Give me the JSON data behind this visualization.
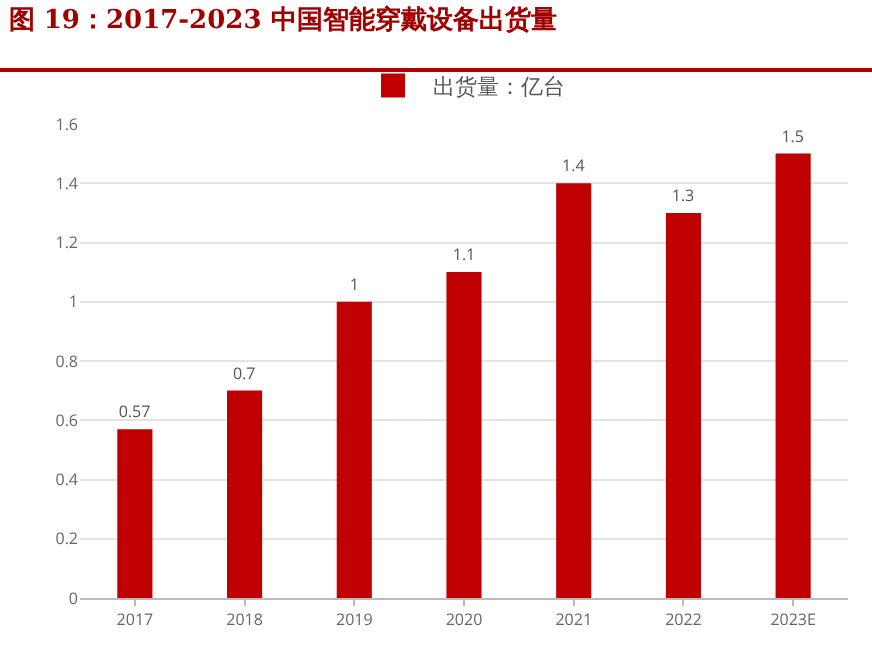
{
  "chart_data": {
    "type": "bar",
    "title": "图 19：2017-2023 中国智能穿戴设备出货量",
    "categories": [
      "2017",
      "2018",
      "2019",
      "2020",
      "2021",
      "2022",
      "2023E"
    ],
    "series": [
      {
        "name": "出货量：亿台",
        "color": "#c00000",
        "values": [
          0.57,
          0.7,
          1,
          1.1,
          1.4,
          1.3,
          1.5
        ]
      }
    ],
    "ylim": [
      0,
      1.6
    ],
    "yticks": [
      0,
      0.2,
      0.4,
      0.6,
      0.8,
      1,
      1.2,
      1.4,
      1.6
    ],
    "grid": "y",
    "legend": "top",
    "data_labels": true
  }
}
